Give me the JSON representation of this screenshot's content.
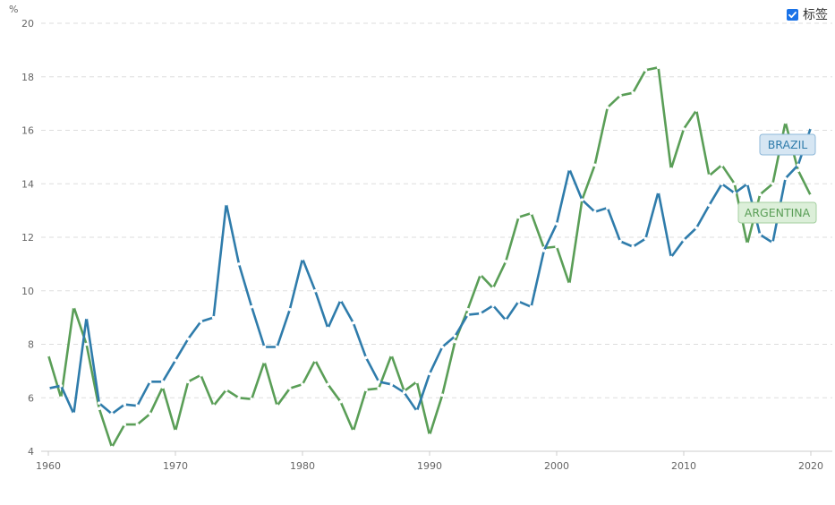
{
  "legend_toggle": {
    "label": "标签",
    "checked": true
  },
  "chart_data": {
    "type": "line",
    "ylabel": "%",
    "ylim": [
      4,
      20
    ],
    "xlim": [
      1960,
      2020
    ],
    "yticks": [
      "4",
      "6",
      "8",
      "10",
      "12",
      "14",
      "16",
      "18",
      "20"
    ],
    "xticks": [
      "1960",
      "1970",
      "1980",
      "1990",
      "2000",
      "2010",
      "2020"
    ],
    "grid": "horizontal-dashed",
    "x": [
      1960,
      1961,
      1962,
      1963,
      1964,
      1965,
      1966,
      1967,
      1968,
      1969,
      1970,
      1971,
      1972,
      1973,
      1974,
      1975,
      1976,
      1977,
      1978,
      1979,
      1980,
      1981,
      1982,
      1983,
      1984,
      1985,
      1986,
      1987,
      1988,
      1989,
      1990,
      1991,
      1992,
      1993,
      1994,
      1995,
      1996,
      1997,
      1998,
      1999,
      2000,
      2001,
      2002,
      2003,
      2004,
      2005,
      2006,
      2007,
      2008,
      2009,
      2010,
      2011,
      2012,
      2013,
      2014,
      2015,
      2016,
      2017,
      2018,
      2019,
      2020
    ],
    "series": [
      {
        "name": "BRAZIL",
        "color": "#2f7cab",
        "label_bg": "#d6e6f3",
        "label_border": "#8fb8d8",
        "values": [
          6.35,
          6.45,
          5.4,
          9.0,
          5.8,
          5.4,
          5.75,
          5.7,
          6.6,
          6.6,
          7.4,
          8.2,
          8.85,
          9.0,
          13.25,
          11.0,
          9.4,
          7.9,
          7.9,
          9.3,
          11.2,
          10.0,
          8.6,
          9.65,
          8.8,
          7.5,
          6.6,
          6.5,
          6.2,
          5.5,
          6.9,
          7.9,
          8.3,
          9.1,
          9.15,
          9.45,
          8.9,
          9.6,
          9.4,
          11.5,
          12.5,
          14.55,
          13.4,
          12.95,
          13.1,
          11.85,
          11.65,
          11.95,
          13.7,
          11.25,
          11.9,
          12.35,
          13.2,
          14.0,
          13.65,
          14.0,
          12.1,
          11.8,
          14.2,
          14.7,
          16.1
        ]
      },
      {
        "name": "ARGENTINA",
        "color": "#5a9e57",
        "label_bg": "#dcefd9",
        "label_border": "#a4cfa0",
        "values": [
          7.6,
          6.0,
          9.4,
          8.0,
          5.6,
          4.15,
          5.0,
          5.0,
          5.4,
          6.4,
          4.75,
          6.6,
          6.85,
          5.7,
          6.3,
          6.0,
          5.95,
          7.35,
          5.7,
          6.35,
          6.5,
          7.4,
          6.5,
          5.85,
          4.75,
          6.3,
          6.35,
          7.6,
          6.25,
          6.6,
          4.6,
          6.1,
          8.1,
          9.3,
          10.6,
          10.1,
          11.1,
          12.75,
          12.9,
          11.6,
          11.65,
          10.25,
          13.4,
          14.7,
          16.85,
          17.3,
          17.4,
          18.25,
          18.35,
          14.55,
          16.05,
          16.75,
          14.3,
          14.7,
          14.0,
          11.75,
          13.6,
          14.0,
          16.3,
          14.5,
          13.55
        ]
      }
    ]
  }
}
